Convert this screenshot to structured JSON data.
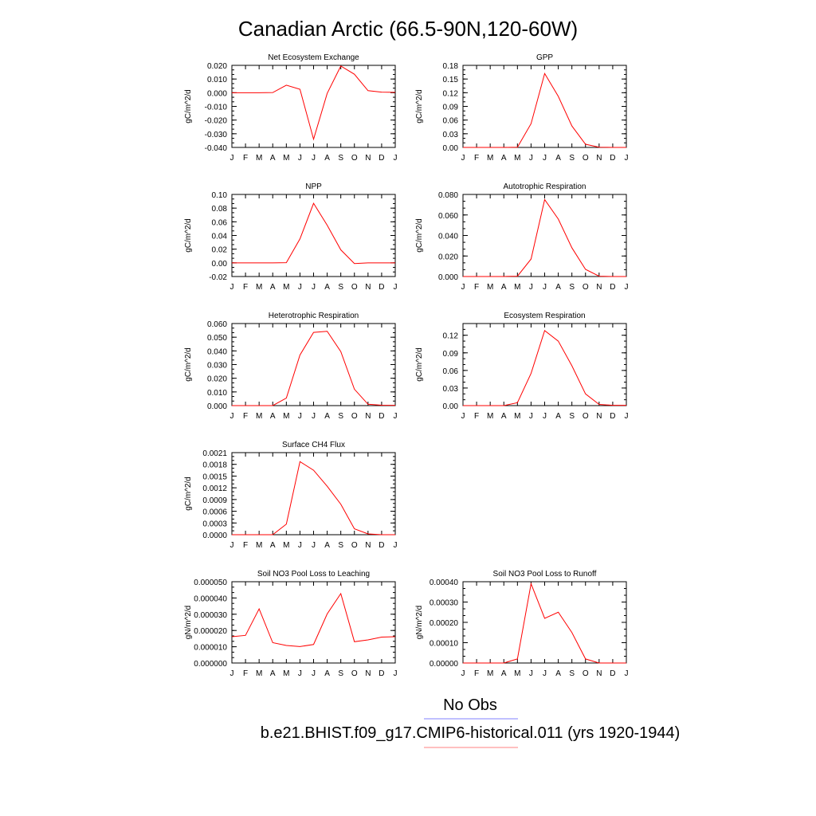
{
  "figure": {
    "title": "Canadian Arctic (66.5-90N,120-60W)",
    "legend": [
      {
        "label": "No Obs",
        "color": "#8080ff"
      },
      {
        "label": "b.e21.BHIST.f09_g17.CMIP6-historical.011 (yrs 1920-1944)",
        "color": "#ff8080"
      }
    ],
    "line_color": "#ff0000"
  },
  "chart_data": [
    {
      "type": "line",
      "title": "Net Ecosystem Exchange",
      "ylabel": "gC/m^2/d",
      "categories": [
        "J",
        "F",
        "M",
        "A",
        "M",
        "J",
        "J",
        "A",
        "S",
        "O",
        "N",
        "D",
        "J"
      ],
      "ylim": [
        -0.04,
        0.02
      ],
      "ytick_labels": [
        "-0.040",
        "-0.030",
        "-0.020",
        "-0.010",
        "0.000",
        "0.010",
        "0.020"
      ],
      "ytick_values": [
        -0.04,
        -0.03,
        -0.02,
        -0.01,
        0.0,
        0.01,
        0.02
      ],
      "values": [
        0.0,
        0.0,
        0.0,
        0.0001,
        0.0055,
        0.0025,
        -0.034,
        -0.0005,
        0.0195,
        0.0135,
        0.0015,
        0.0004,
        0.0003
      ]
    },
    {
      "type": "line",
      "title": "GPP",
      "ylabel": "gC/m^2/d",
      "categories": [
        "J",
        "F",
        "M",
        "A",
        "M",
        "J",
        "J",
        "A",
        "S",
        "O",
        "N",
        "D",
        "J"
      ],
      "ylim": [
        0,
        0.18
      ],
      "ytick_labels": [
        "0.00",
        "0.03",
        "0.06",
        "0.09",
        "0.12",
        "0.15",
        "0.18"
      ],
      "ytick_values": [
        0,
        0.03,
        0.06,
        0.09,
        0.12,
        0.15,
        0.18
      ],
      "values": [
        0,
        0,
        0,
        0,
        0.0005,
        0.052,
        0.162,
        0.112,
        0.047,
        0.007,
        0.0005,
        0,
        0
      ]
    },
    {
      "type": "line",
      "title": "NPP",
      "ylabel": "gC/m^2/d",
      "categories": [
        "J",
        "F",
        "M",
        "A",
        "M",
        "J",
        "J",
        "A",
        "S",
        "O",
        "N",
        "D",
        "J"
      ],
      "ylim": [
        -0.02,
        0.1
      ],
      "ytick_labels": [
        "-0.02",
        "0.00",
        "0.02",
        "0.04",
        "0.06",
        "0.08",
        "0.10"
      ],
      "ytick_values": [
        -0.02,
        0,
        0.02,
        0.04,
        0.06,
        0.08,
        0.1
      ],
      "values": [
        0,
        0,
        0,
        0,
        0.0002,
        0.035,
        0.087,
        0.055,
        0.019,
        -0.001,
        0,
        0,
        0
      ]
    },
    {
      "type": "line",
      "title": "Autotrophic Respiration",
      "ylabel": "gC/m^2/d",
      "categories": [
        "J",
        "F",
        "M",
        "A",
        "M",
        "J",
        "J",
        "A",
        "S",
        "O",
        "N",
        "D",
        "J"
      ],
      "ylim": [
        0,
        0.08
      ],
      "ytick_labels": [
        "0.000",
        "0.020",
        "0.040",
        "0.060",
        "0.080"
      ],
      "ytick_values": [
        0,
        0.02,
        0.04,
        0.06,
        0.08
      ],
      "values": [
        0,
        0,
        0,
        0,
        0.0003,
        0.017,
        0.075,
        0.056,
        0.028,
        0.007,
        0.0003,
        0,
        0
      ]
    },
    {
      "type": "line",
      "title": "Heterotrophic Respiration",
      "ylabel": "gC/m^2/d",
      "categories": [
        "J",
        "F",
        "M",
        "A",
        "M",
        "J",
        "J",
        "A",
        "S",
        "O",
        "N",
        "D",
        "J"
      ],
      "ylim": [
        0,
        0.06
      ],
      "ytick_labels": [
        "0.000",
        "0.010",
        "0.020",
        "0.030",
        "0.040",
        "0.050",
        "0.060"
      ],
      "ytick_values": [
        0,
        0.01,
        0.02,
        0.03,
        0.04,
        0.05,
        0.06
      ],
      "values": [
        0,
        0,
        0,
        0,
        0.0055,
        0.037,
        0.0535,
        0.0543,
        0.0395,
        0.012,
        0.001,
        0.0003,
        0.0002
      ]
    },
    {
      "type": "line",
      "title": "Ecosystem Respiration",
      "ylabel": "gC/m^2/d",
      "categories": [
        "J",
        "F",
        "M",
        "A",
        "M",
        "J",
        "J",
        "A",
        "S",
        "O",
        "N",
        "D",
        "J"
      ],
      "ylim": [
        0,
        0.14
      ],
      "ytick_labels": [
        "0.00",
        "0.03",
        "0.06",
        "0.09",
        "0.12"
      ],
      "ytick_values": [
        0,
        0.03,
        0.06,
        0.09,
        0.12
      ],
      "values": [
        0,
        0,
        0,
        0,
        0.005,
        0.055,
        0.128,
        0.11,
        0.068,
        0.02,
        0.002,
        0.0005,
        0.0005
      ]
    },
    {
      "type": "line",
      "title": "Surface CH4 Flux",
      "ylabel": "gC/m^2/d",
      "categories": [
        "J",
        "F",
        "M",
        "A",
        "M",
        "J",
        "J",
        "A",
        "S",
        "O",
        "N",
        "D",
        "J"
      ],
      "ylim": [
        0,
        0.0021
      ],
      "ytick_labels": [
        "0.0000",
        "0.0003",
        "0.0006",
        "0.0009",
        "0.0012",
        "0.0015",
        "0.0018",
        "0.0021"
      ],
      "ytick_values": [
        0,
        0.0003,
        0.0006,
        0.0009,
        0.0012,
        0.0015,
        0.0018,
        0.0021
      ],
      "values": [
        0,
        0,
        0,
        0,
        0.00027,
        0.00187,
        0.00165,
        0.00124,
        0.00078,
        0.00015,
        2e-05,
        0,
        0
      ]
    },
    {
      "type": "line",
      "title": "Soil NO3 Pool Loss to Leaching",
      "ylabel": "gN/m^2/d",
      "categories": [
        "J",
        "F",
        "M",
        "A",
        "M",
        "J",
        "J",
        "A",
        "S",
        "O",
        "N",
        "D",
        "J"
      ],
      "ylim": [
        0,
        5e-05
      ],
      "ytick_labels": [
        "0.000000",
        "0.000010",
        "0.000020",
        "0.000030",
        "0.000040",
        "0.000050"
      ],
      "ytick_values": [
        0,
        1e-05,
        2e-05,
        3e-05,
        4e-05,
        5e-05
      ],
      "values": [
        1.62e-05,
        1.7e-05,
        3.33e-05,
        1.25e-05,
        1.08e-05,
        1.01e-05,
        1.14e-05,
        3.02e-05,
        4.27e-05,
        1.31e-05,
        1.42e-05,
        1.59e-05,
        1.62e-05
      ]
    },
    {
      "type": "line",
      "title": "Soil NO3 Pool Loss to Runoff",
      "ylabel": "gN/m^2/d",
      "categories": [
        "J",
        "F",
        "M",
        "A",
        "M",
        "J",
        "J",
        "A",
        "S",
        "O",
        "N",
        "D",
        "J"
      ],
      "ylim": [
        0,
        0.0004
      ],
      "ytick_labels": [
        "0.00000",
        "0.00010",
        "0.00020",
        "0.00030",
        "0.00040"
      ],
      "ytick_values": [
        0,
        0.0001,
        0.0002,
        0.0003,
        0.0004
      ],
      "values": [
        0,
        0,
        0,
        0,
        2e-05,
        0.00039,
        0.00022,
        0.00025,
        0.00015,
        2e-05,
        0,
        0,
        0
      ]
    }
  ]
}
